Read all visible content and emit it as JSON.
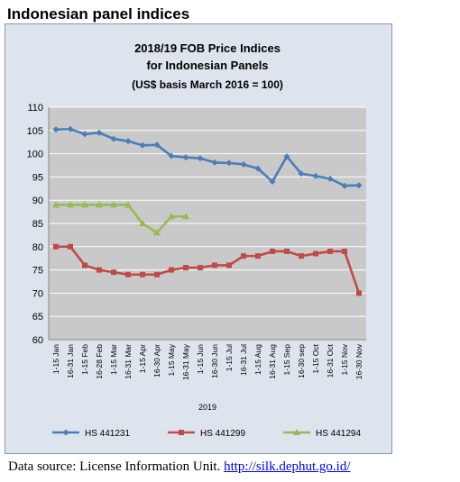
{
  "page": {
    "heading": "Indonesian panel indices"
  },
  "source": {
    "text": "Data source: License Information Unit.",
    "link": "http://silk.dephut.go.id/"
  },
  "chart_data": {
    "type": "line",
    "title": "2018/19 FOB Price Indices",
    "title_line2": "for Indonesian Panels",
    "subtitle": "(US$ basis March 2016 = 100)",
    "xlabel": "2019",
    "ylabel": "",
    "ylim": [
      60,
      110
    ],
    "yticks": [
      60,
      65,
      70,
      75,
      80,
      85,
      90,
      95,
      100,
      105,
      110
    ],
    "grid": true,
    "legend_position": "bottom",
    "categories": [
      "1-15 Jan",
      "16-31 Jan",
      "1-15 Feb",
      "16-28 Feb",
      "1-15 Mar",
      "16-31 Mar",
      "1-15 Apr",
      "16-30 Apr",
      "1-15 May",
      "16-31 May",
      "1-15 Jun",
      "16-30 Jun",
      "1-15 Jul",
      "16-31 Jul",
      "1-15 Aug",
      "16-31 Aug",
      "1-15 Sep",
      "16-30 sep",
      "1-15 Oct",
      "16-31 Oct",
      "1-15 Nov",
      "16-30 Nov"
    ],
    "series": [
      {
        "name": "HS 441231",
        "color": "#4a7ebb",
        "marker": "diamond",
        "values": [
          105.2,
          105.3,
          104.2,
          104.5,
          103.2,
          102.7,
          101.8,
          101.9,
          99.5,
          99.2,
          99.0,
          98.1,
          98.0,
          97.7,
          96.8,
          94.0,
          99.4,
          95.7,
          95.2,
          94.6,
          93.1,
          93.2
        ]
      },
      {
        "name": "HS 441299",
        "color": "#be4b48",
        "marker": "square",
        "values": [
          80.0,
          80.0,
          76.0,
          75.0,
          74.5,
          74.0,
          74.0,
          74.0,
          75.0,
          75.5,
          75.5,
          76.0,
          76.0,
          78.0,
          78.0,
          79.0,
          79.0,
          78.0,
          78.5,
          79.0,
          79.0,
          70.0
        ]
      },
      {
        "name": "HS 441294",
        "color": "#98b954",
        "marker": "triangle",
        "values": [
          89.0,
          89.0,
          89.0,
          89.0,
          89.0,
          89.0,
          85.0,
          83.0,
          86.5,
          86.5,
          null,
          null,
          null,
          null,
          null,
          null,
          null,
          null,
          null,
          null,
          null,
          null
        ]
      }
    ]
  }
}
